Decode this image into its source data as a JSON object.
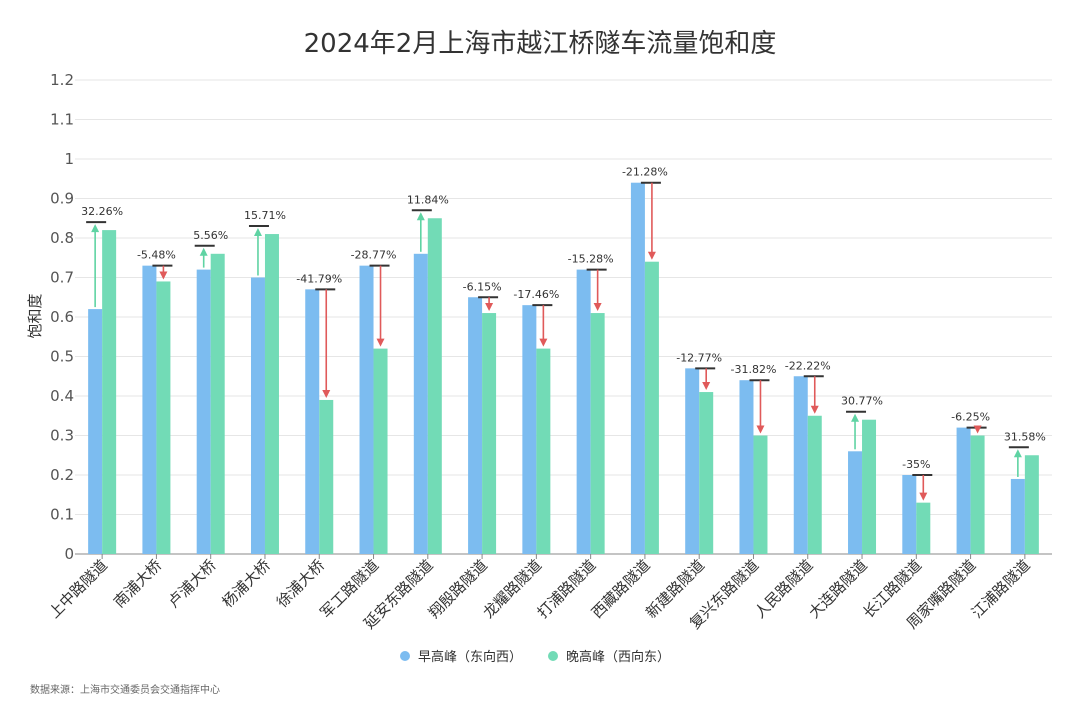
{
  "chart_data": {
    "type": "bar",
    "title": "2024年2月上海市越江桥隧车流量饱和度",
    "ylabel": "饱和度",
    "xlabel": "",
    "ylim": [
      0,
      1.2
    ],
    "yticks": [
      "0",
      "0.1",
      "0.2",
      "0.3",
      "0.4",
      "0.5",
      "0.6",
      "0.7",
      "0.8",
      "0.9",
      "1",
      "1.1",
      "1.2"
    ],
    "ytick_values": [
      0,
      0.1,
      0.2,
      0.3,
      0.4,
      0.5,
      0.6,
      0.7,
      0.8,
      0.9,
      1.0,
      1.1,
      1.2
    ],
    "categories": [
      "上中路隧道",
      "南浦大桥",
      "卢浦大桥",
      "杨浦大桥",
      "徐浦大桥",
      "军工路隧道",
      "延安东路隧道",
      "翔殷路隧道",
      "龙耀路隧道",
      "打浦路隧道",
      "西藏路隧道",
      "新建路隧道",
      "复兴东路隧道",
      "人民路隧道",
      "大连路隧道",
      "长江路隧道",
      "周家嘴路隧道",
      "江浦路隧道"
    ],
    "series": [
      {
        "name": "早高峰（东向西）",
        "color": "#7cbcf0",
        "values": [
          0.62,
          0.73,
          0.72,
          0.7,
          0.67,
          0.73,
          0.76,
          0.65,
          0.63,
          0.72,
          0.94,
          0.47,
          0.44,
          0.45,
          0.26,
          0.2,
          0.32,
          0.19
        ]
      },
      {
        "name": "晚高峰（西向东）",
        "color": "#72dbb6",
        "values": [
          0.82,
          0.69,
          0.76,
          0.81,
          0.39,
          0.52,
          0.85,
          0.61,
          0.52,
          0.61,
          0.74,
          0.41,
          0.3,
          0.35,
          0.34,
          0.13,
          0.3,
          0.25
        ]
      }
    ],
    "change_labels": [
      "32.26%",
      "-5.48%",
      "5.56%",
      "15.71%",
      "-41.79%",
      "-28.77%",
      "11.84%",
      "-6.15%",
      "-17.46%",
      "-15.28%",
      "-21.28%",
      "-12.77%",
      "-31.82%",
      "-22.22%",
      "30.77%",
      "-35%",
      "-6.25%",
      "31.58%"
    ],
    "arrow_colors": {
      "up": "#5fd3a3",
      "down": "#e05a5a"
    },
    "legend_position": "bottom-center",
    "grid": true,
    "source": "数据来源：上海市交通委员会交通指挥中心"
  }
}
